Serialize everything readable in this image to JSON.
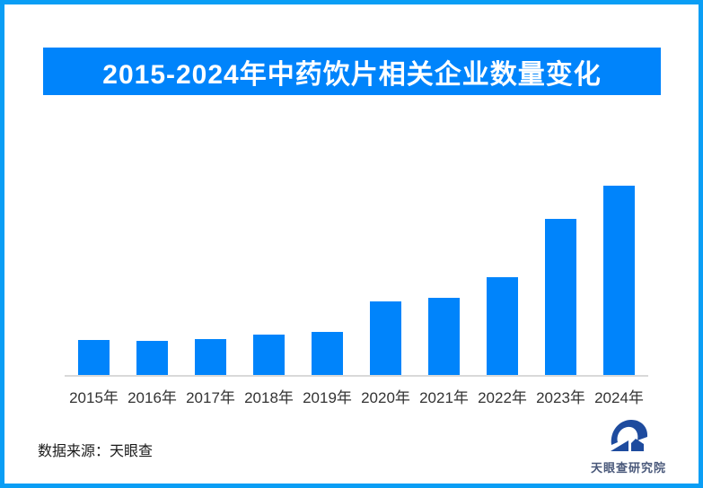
{
  "frame": {
    "border_color": "#0a9ef5",
    "background_color": "#ffffff"
  },
  "banner": {
    "title": "2015-2024年中药饮片相关企业数量变化",
    "bg_color": "#0084fb",
    "text_color": "#ffffff"
  },
  "chart_data": {
    "type": "bar",
    "title": "2015-2024年中药饮片相关企业数量变化",
    "categories": [
      "2015年",
      "2016年",
      "2017年",
      "2018年",
      "2019年",
      "2020年",
      "2021年",
      "2022年",
      "2023年",
      "2024年"
    ],
    "values": [
      39,
      38,
      40,
      45,
      48,
      82,
      86,
      109,
      174,
      211
    ],
    "value_note": "no numeric y-axis or data labels shown in image; values are relative bar heights in px estimated from pixels",
    "xlabel": "",
    "ylabel": "",
    "ylim": [
      0,
      211
    ],
    "grid": false,
    "legend": false,
    "bar_color": "#0084fb",
    "axis_line_color": "#d9d9d9",
    "tick_label_color": "#333333"
  },
  "footer": {
    "source_label": "数据来源：天眼查",
    "logo": {
      "icon_name": "tianyancha-eye-logo-icon",
      "icon_color": "#1e4b9e",
      "text": "天眼查研究院"
    }
  }
}
